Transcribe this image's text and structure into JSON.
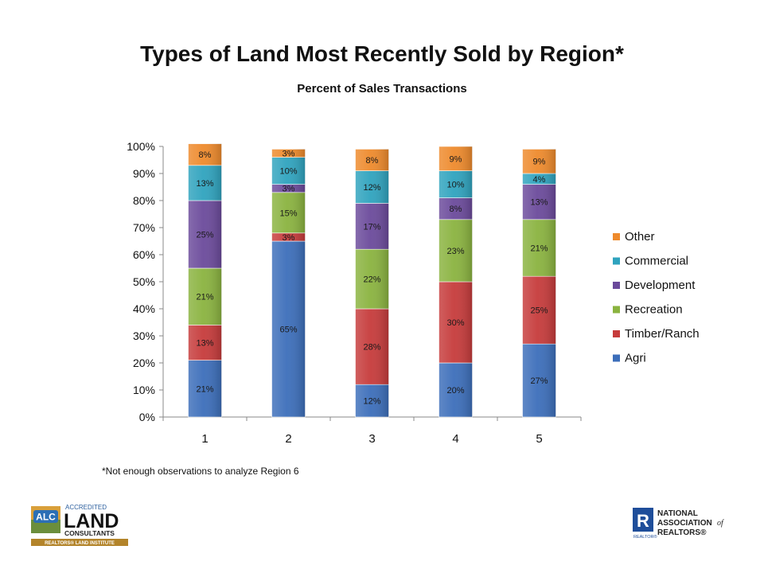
{
  "title": "Types of Land Most Recently Sold by Region*",
  "subtitle": "Percent of Sales Transactions",
  "footnote": "*Not enough observations to analyze Region 6",
  "logos": {
    "alc": {
      "badge": "ALC",
      "line1": "ACCREDITED",
      "line2": "LAND",
      "line3": "CONSULTANTS",
      "line4": "REALTORS® LAND INSTITUTE"
    },
    "nar": {
      "letter": "R",
      "line1": "NATIONAL",
      "line2": "ASSOCIATION",
      "line2b": "of",
      "line3": "REALTORS®",
      "sub": "REALTOR®"
    }
  },
  "chart_data": {
    "type": "bar",
    "stacked": true,
    "categories": [
      "1",
      "2",
      "3",
      "4",
      "5"
    ],
    "ylim": [
      0,
      100
    ],
    "yticks": [
      "0%",
      "10%",
      "20%",
      "30%",
      "40%",
      "50%",
      "60%",
      "70%",
      "80%",
      "90%",
      "100%"
    ],
    "legend_position": "right",
    "series": [
      {
        "name": "Agri",
        "color": "#3C6EBA",
        "values": [
          21,
          65,
          12,
          20,
          27
        ],
        "labels": [
          "21%",
          "65%",
          "12%",
          "20%",
          "27%"
        ]
      },
      {
        "name": "Timber/Ranch",
        "color": "#C63B3B",
        "values": [
          13,
          3,
          28,
          30,
          25
        ],
        "labels": [
          "13%",
          "3%",
          "28%",
          "30%",
          "25%"
        ]
      },
      {
        "name": "Recreation",
        "color": "#8AB33F",
        "values": [
          21,
          15,
          22,
          23,
          21
        ],
        "labels": [
          "21%",
          "15%",
          "22%",
          "23%",
          "21%"
        ]
      },
      {
        "name": "Development",
        "color": "#6B4A9B",
        "values": [
          25,
          3,
          17,
          8,
          13
        ],
        "labels": [
          "25%",
          "3%",
          "17%",
          "8%",
          "13%"
        ]
      },
      {
        "name": "Commercial",
        "color": "#2FA3BE",
        "values": [
          13,
          10,
          12,
          10,
          4
        ],
        "labels": [
          "13%",
          "10%",
          "12%",
          "10%",
          "4%"
        ]
      },
      {
        "name": "Other",
        "color": "#EE8A2C",
        "values": [
          8,
          3,
          8,
          9,
          9
        ],
        "labels": [
          "8%",
          "3%",
          "8%",
          "9%",
          "9%"
        ]
      }
    ]
  }
}
